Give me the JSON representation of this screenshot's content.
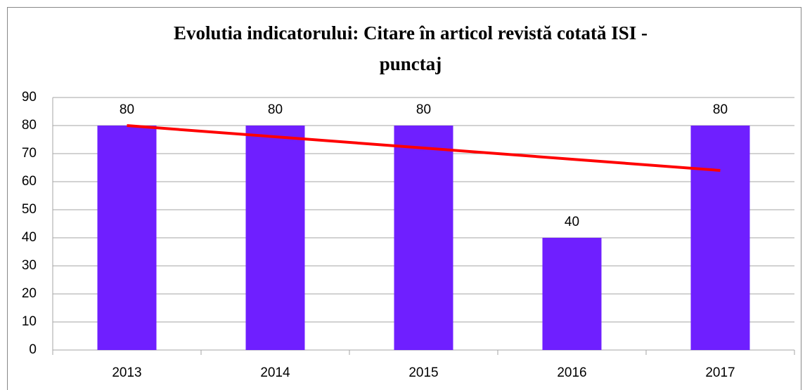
{
  "chart_data": {
    "type": "bar",
    "title": [
      "Evolutia indicatorului: Citare în articol revistă cotată ISI -",
      "punctaj"
    ],
    "categories": [
      "2013",
      "2014",
      "2015",
      "2016",
      "2017"
    ],
    "values": [
      80,
      80,
      80,
      40,
      80
    ],
    "color": "#6f1fff",
    "trend": {
      "color": "#ff0000",
      "values": [
        80,
        76,
        72,
        68,
        64
      ]
    },
    "ylim": [
      0,
      90
    ],
    "yticks": [
      0,
      10,
      20,
      30,
      40,
      50,
      60,
      70,
      80,
      90
    ],
    "grid": true
  }
}
